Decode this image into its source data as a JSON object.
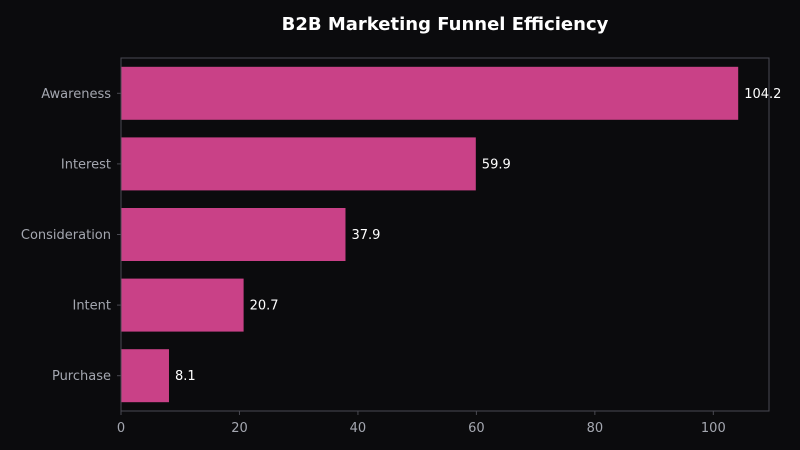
{
  "chart_data": {
    "type": "bar",
    "orientation": "horizontal",
    "title": "B2B Marketing Funnel Efficiency",
    "xlabel": "",
    "ylabel": "",
    "categories": [
      "Awareness",
      "Interest",
      "Consideration",
      "Intent",
      "Purchase"
    ],
    "values": [
      104.2,
      59.9,
      37.9,
      20.7,
      8.1
    ],
    "value_labels": [
      "104.2",
      "59.9",
      "37.9",
      "20.7",
      "8.1"
    ],
    "xlim": [
      0,
      109.4
    ],
    "xticks": [
      0,
      20,
      40,
      60,
      80,
      100
    ],
    "xtick_labels": [
      "0",
      "20",
      "40",
      "60",
      "80",
      "100"
    ],
    "grid": false,
    "legend": "none"
  },
  "colors": {
    "background": "#0b0b0d",
    "bar": "#c94187",
    "title": "#ffffff",
    "tick_label": "#a4a7b0",
    "data_label": "#ffffff",
    "frame": "#4a4a52"
  }
}
